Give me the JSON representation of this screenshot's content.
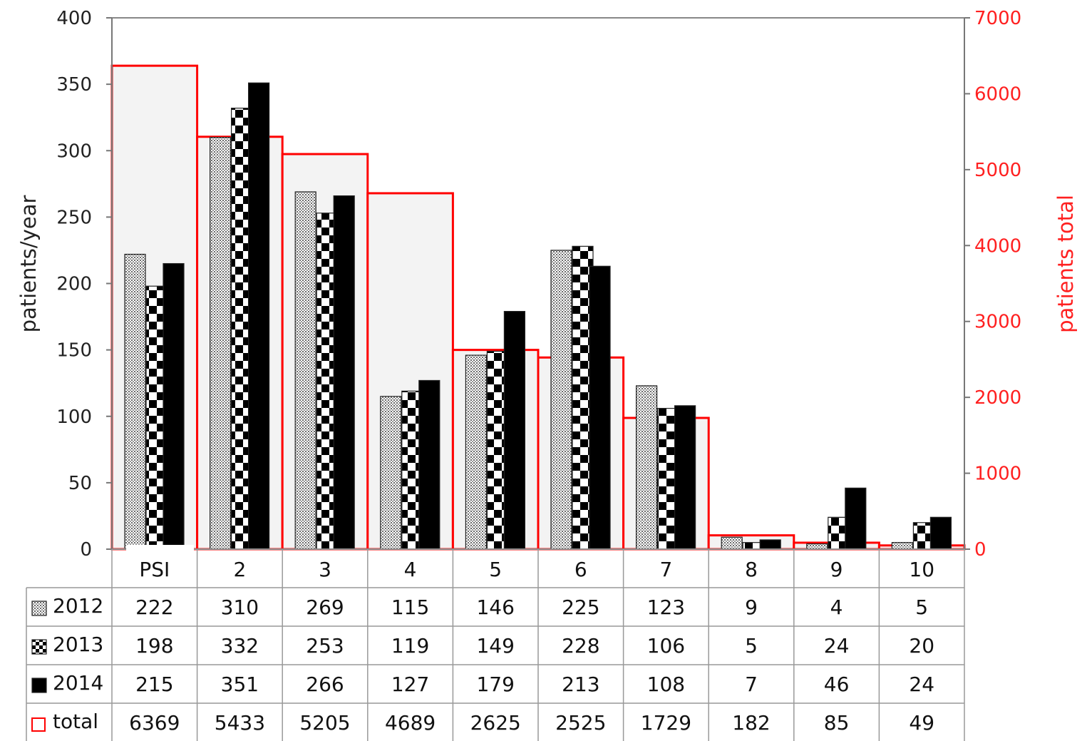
{
  "chart_data": {
    "type": "bar",
    "categories": [
      "PSI",
      "2",
      "3",
      "4",
      "5",
      "6",
      "7",
      "8",
      "9",
      "10"
    ],
    "series": [
      {
        "name": "2012",
        "axis": "left",
        "pattern": "dotted",
        "values": [
          222,
          310,
          269,
          115,
          146,
          225,
          123,
          9,
          4,
          5
        ]
      },
      {
        "name": "2013",
        "axis": "left",
        "pattern": "checkered",
        "values": [
          198,
          332,
          253,
          119,
          149,
          228,
          106,
          5,
          24,
          20
        ]
      },
      {
        "name": "2014",
        "axis": "left",
        "pattern": "solid",
        "color": "#000000",
        "values": [
          215,
          351,
          266,
          127,
          179,
          213,
          108,
          7,
          46,
          24
        ]
      },
      {
        "name": "total",
        "axis": "right",
        "type": "bar-outline",
        "color": "#ff0000",
        "values": [
          6369,
          5433,
          5205,
          4689,
          2625,
          2525,
          1729,
          182,
          85,
          49
        ]
      }
    ],
    "ylabel": "patients/year",
    "y2label": "patients total",
    "ylim": [
      0,
      400
    ],
    "y2lim": [
      0,
      7000
    ],
    "yticks": [
      0,
      50,
      100,
      150,
      200,
      250,
      300,
      350,
      400
    ],
    "y2ticks": [
      0,
      1000,
      2000,
      3000,
      4000,
      5000,
      6000,
      7000
    ],
    "data_table": true,
    "grid": false
  },
  "colors": {
    "total": "#ff0000",
    "total_fill": "#f3f3f3",
    "axis_right": "#ff2020"
  }
}
